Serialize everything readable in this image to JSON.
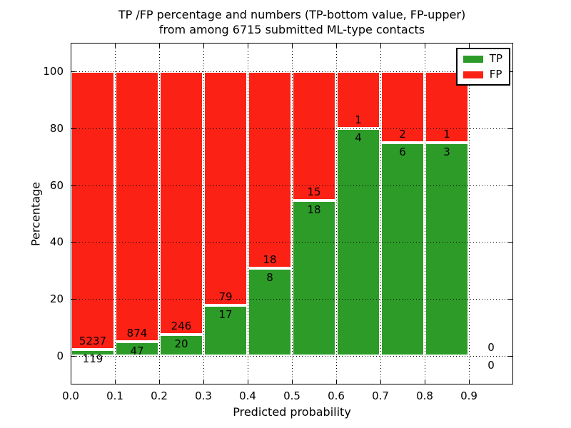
{
  "title": {
    "line1": "TP /FP percentage and numbers (TP-bottom value, FP-upper)",
    "line2": "from among 6715 submitted ML-type contacts"
  },
  "axes": {
    "xlabel": "Predicted probability",
    "ylabel": "Percentage"
  },
  "legend": {
    "position": "upper right",
    "entries": [
      {
        "label": "TP",
        "color": "#2d9b28"
      },
      {
        "label": "FP",
        "color": "#fb2115"
      }
    ]
  },
  "chart_data": {
    "type": "bar",
    "stacked": true,
    "normalized": "each bin stacks to 100%",
    "title": "TP /FP percentage and numbers (TP-bottom value, FP-upper) from among 6715 submitted ML-type contacts",
    "xlabel": "Predicted probability",
    "ylabel": "Percentage",
    "xlim": [
      0.0,
      1.0
    ],
    "ylim": [
      -10,
      110
    ],
    "xticks": [
      0.0,
      0.1,
      0.2,
      0.3,
      0.4,
      0.5,
      0.6,
      0.7,
      0.8,
      0.9
    ],
    "xtick_labels": [
      "0.0",
      "0.1",
      "0.2",
      "0.3",
      "0.4",
      "0.5",
      "0.6",
      "0.7",
      "0.8",
      "0.9"
    ],
    "yticks": [
      0,
      20,
      40,
      60,
      80,
      100
    ],
    "ytick_labels": [
      "0",
      "20",
      "40",
      "60",
      "80",
      "100"
    ],
    "grid": "dotted both axes, drawn over bars",
    "legend_position": "upper right",
    "total_contacts": 6715,
    "colors": {
      "tp": "#2d9b28",
      "fp": "#fb2115",
      "bar_edge": "#ffffff"
    },
    "series": [
      {
        "name": "TP",
        "color": "#2d9b28",
        "counts": [
          119,
          47,
          20,
          17,
          8,
          18,
          4,
          6,
          3,
          0
        ]
      },
      {
        "name": "FP",
        "color": "#fb2115",
        "counts": [
          5237,
          874,
          246,
          79,
          18,
          15,
          1,
          2,
          1,
          0
        ]
      }
    ],
    "bins": [
      {
        "range": [
          0.0,
          0.1
        ],
        "tp": 119,
        "fp": 5237,
        "tp_pct": 2.22
      },
      {
        "range": [
          0.1,
          0.2
        ],
        "tp": 47,
        "fp": 874,
        "tp_pct": 5.1
      },
      {
        "range": [
          0.2,
          0.3
        ],
        "tp": 20,
        "fp": 246,
        "tp_pct": 7.52
      },
      {
        "range": [
          0.3,
          0.4
        ],
        "tp": 17,
        "fp": 79,
        "tp_pct": 17.71
      },
      {
        "range": [
          0.4,
          0.5
        ],
        "tp": 8,
        "fp": 18,
        "tp_pct": 30.77
      },
      {
        "range": [
          0.5,
          0.6
        ],
        "tp": 18,
        "fp": 15,
        "tp_pct": 54.55
      },
      {
        "range": [
          0.6,
          0.7
        ],
        "tp": 4,
        "fp": 1,
        "tp_pct": 80.0
      },
      {
        "range": [
          0.7,
          0.8
        ],
        "tp": 6,
        "fp": 2,
        "tp_pct": 75.0
      },
      {
        "range": [
          0.8,
          0.9
        ],
        "tp": 3,
        "fp": 1,
        "tp_pct": 75.0
      },
      {
        "range": [
          0.9,
          1.0
        ],
        "tp": 0,
        "fp": 0,
        "tp_pct": null
      }
    ]
  }
}
